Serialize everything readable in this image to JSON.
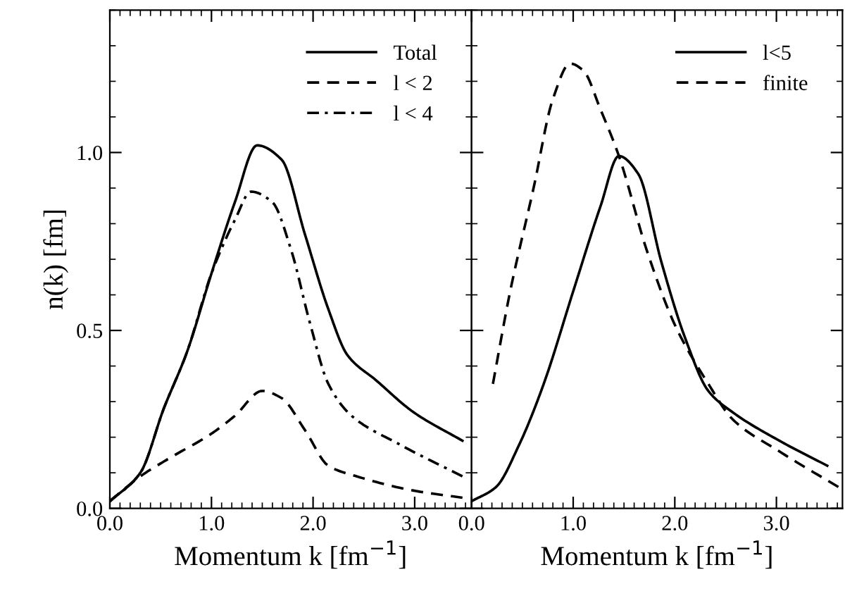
{
  "chart_data": [
    {
      "type": "line",
      "xlabel": "Momentum k [fm$^{−1}$]",
      "ylabel": "n(k) [fm]",
      "xlim": [
        0,
        3.56
      ],
      "ylim": [
        0,
        1.4
      ],
      "xticks": [
        {
          "value": 0,
          "label": "0.0"
        },
        {
          "value": 1,
          "label": "1.0"
        },
        {
          "value": 2,
          "label": "2.0"
        },
        {
          "value": 3,
          "label": "3.0"
        }
      ],
      "yticks": [
        {
          "value": 0,
          "label": "0.0"
        },
        {
          "value": 0.5,
          "label": "0.5"
        },
        {
          "value": 1,
          "label": "1.0"
        }
      ],
      "grid": false,
      "legend": "top right",
      "marker": "none",
      "series": [
        {
          "name": "Total",
          "color": "#000000",
          "line_style": "solid",
          "x": [
            0,
            0.3,
            0.53,
            0.76,
            1.0,
            1.23,
            1.45,
            1.69,
            1.92,
            2.15,
            2.34,
            2.62,
            2.99,
            3.47
          ],
          "values": [
            0.02,
            0.1,
            0.28,
            0.44,
            0.66,
            0.86,
            1.02,
            0.98,
            0.77,
            0.56,
            0.43,
            0.36,
            0.27,
            0.19
          ]
        },
        {
          "name": "l < 2",
          "color": "#000000",
          "line_style": "dashed",
          "x": [
            0,
            0.3,
            0.58,
            1.0,
            1.23,
            1.5,
            1.69,
            1.92,
            2.15,
            2.43,
            2.99,
            3.47
          ],
          "values": [
            0.02,
            0.09,
            0.14,
            0.21,
            0.26,
            0.33,
            0.31,
            0.22,
            0.12,
            0.09,
            0.05,
            0.03
          ]
        },
        {
          "name": "l < 4",
          "color": "#000000",
          "line_style": "dashdot",
          "x": [
            0,
            0.3,
            0.53,
            0.76,
            1.0,
            1.23,
            1.39,
            1.6,
            1.78,
            1.97,
            2.15,
            2.38,
            2.85,
            3.47
          ],
          "values": [
            0.02,
            0.1,
            0.28,
            0.44,
            0.66,
            0.81,
            0.89,
            0.86,
            0.73,
            0.52,
            0.35,
            0.26,
            0.18,
            0.09
          ]
        }
      ]
    },
    {
      "type": "line",
      "xlabel": "Momentum k [fm$^{−1}$]",
      "xlim": [
        0,
        3.65
      ],
      "ylim": [
        0,
        1.4
      ],
      "xticks": [
        {
          "value": 0,
          "label": "0.0"
        },
        {
          "value": 1,
          "label": "1.0"
        },
        {
          "value": 2,
          "label": "2.0"
        },
        {
          "value": 3,
          "label": "3.0"
        }
      ],
      "tick_labels": "x",
      "grid": false,
      "legend": "top right",
      "marker": "none",
      "yticks": [
        0,
        0.5,
        1
      ],
      "series": [
        {
          "name": "l<5",
          "color": "#000000",
          "line_style": "solid",
          "x": [
            0,
            0.24,
            0.47,
            0.71,
            1.0,
            1.27,
            1.45,
            1.64,
            1.87,
            2.1,
            2.33,
            2.57,
            3.03,
            3.5
          ],
          "values": [
            0.02,
            0.06,
            0.18,
            0.35,
            0.61,
            0.85,
            0.99,
            0.94,
            0.69,
            0.48,
            0.33,
            0.27,
            0.19,
            0.12
          ]
        },
        {
          "name": "finite",
          "color": "#000000",
          "line_style": "dashed",
          "x": [
            0.21,
            0.38,
            0.61,
            0.8,
            0.97,
            1.1,
            1.27,
            1.45,
            1.73,
            2.01,
            2.33,
            2.57,
            3.03,
            3.61
          ],
          "values": [
            0.35,
            0.61,
            0.9,
            1.15,
            1.25,
            1.23,
            1.12,
            0.99,
            0.72,
            0.51,
            0.35,
            0.25,
            0.16,
            0.06
          ]
        }
      ]
    }
  ]
}
